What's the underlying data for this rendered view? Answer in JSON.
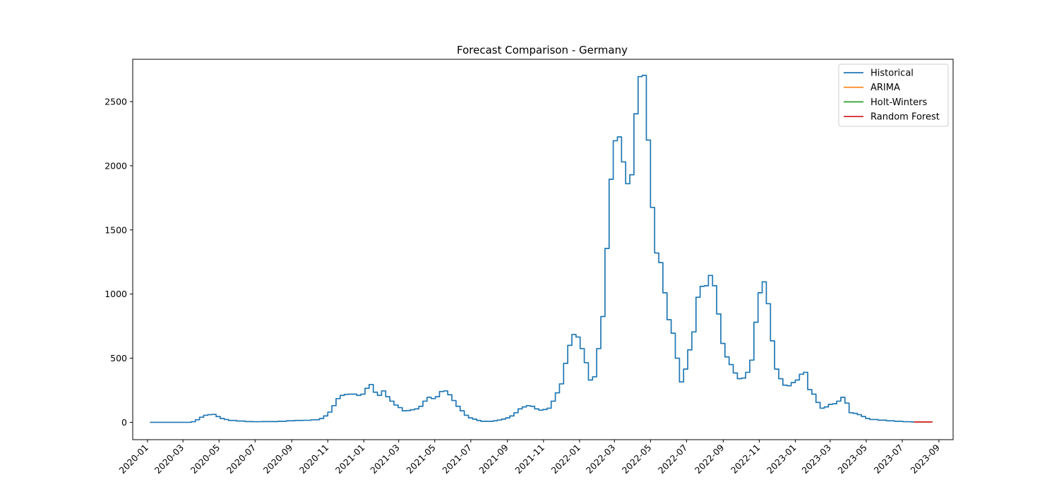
{
  "chart_data": {
    "type": "line",
    "title": "Forecast Comparison - Germany",
    "xlabel": "",
    "ylabel": "",
    "x_type": "date",
    "xlim": [
      "2019-12-07",
      "2023-09-25"
    ],
    "ylim": [
      -135,
      2830
    ],
    "grid": false,
    "legend_position": "top-right",
    "x_tick_labels": [
      "2020-01",
      "2020-03",
      "2020-05",
      "2020-07",
      "2020-09",
      "2020-11",
      "2021-01",
      "2021-03",
      "2021-05",
      "2021-07",
      "2021-09",
      "2021-11",
      "2022-01",
      "2022-03",
      "2022-05",
      "2022-07",
      "2022-09",
      "2022-11",
      "2023-01",
      "2023-03",
      "2023-05",
      "2023-07",
      "2023-09"
    ],
    "y_tick_labels": [
      "0",
      "500",
      "1000",
      "1500",
      "2000",
      "2500"
    ],
    "series": [
      {
        "name": "Historical",
        "color": "#1f77b4",
        "step": true,
        "points": [
          [
            "2020-01-05",
            0
          ],
          [
            "2020-03-15",
            5
          ],
          [
            "2020-03-22",
            20
          ],
          [
            "2020-03-29",
            40
          ],
          [
            "2020-04-05",
            55
          ],
          [
            "2020-04-12",
            60
          ],
          [
            "2020-04-19",
            62
          ],
          [
            "2020-04-26",
            45
          ],
          [
            "2020-05-03",
            30
          ],
          [
            "2020-05-10",
            22
          ],
          [
            "2020-05-17",
            15
          ],
          [
            "2020-05-31",
            10
          ],
          [
            "2020-06-14",
            6
          ],
          [
            "2020-06-28",
            5
          ],
          [
            "2020-07-12",
            6
          ],
          [
            "2020-07-26",
            6
          ],
          [
            "2020-08-09",
            8
          ],
          [
            "2020-08-23",
            12
          ],
          [
            "2020-09-06",
            15
          ],
          [
            "2020-09-20",
            16
          ],
          [
            "2020-10-04",
            20
          ],
          [
            "2020-10-18",
            30
          ],
          [
            "2020-10-25",
            50
          ],
          [
            "2020-11-01",
            80
          ],
          [
            "2020-11-08",
            130
          ],
          [
            "2020-11-15",
            185
          ],
          [
            "2020-11-22",
            210
          ],
          [
            "2020-11-29",
            218
          ],
          [
            "2020-12-06",
            220
          ],
          [
            "2020-12-20",
            210
          ],
          [
            "2020-12-27",
            220
          ],
          [
            "2021-01-03",
            265
          ],
          [
            "2021-01-10",
            295
          ],
          [
            "2021-01-17",
            235
          ],
          [
            "2021-01-24",
            210
          ],
          [
            "2021-01-31",
            245
          ],
          [
            "2021-02-07",
            200
          ],
          [
            "2021-02-14",
            165
          ],
          [
            "2021-02-21",
            135
          ],
          [
            "2021-02-28",
            115
          ],
          [
            "2021-03-07",
            90
          ],
          [
            "2021-03-14",
            92
          ],
          [
            "2021-03-21",
            98
          ],
          [
            "2021-03-28",
            105
          ],
          [
            "2021-04-04",
            125
          ],
          [
            "2021-04-11",
            165
          ],
          [
            "2021-04-18",
            195
          ],
          [
            "2021-04-25",
            185
          ],
          [
            "2021-05-02",
            200
          ],
          [
            "2021-05-09",
            240
          ],
          [
            "2021-05-16",
            245
          ],
          [
            "2021-05-23",
            215
          ],
          [
            "2021-05-30",
            170
          ],
          [
            "2021-06-06",
            125
          ],
          [
            "2021-06-13",
            90
          ],
          [
            "2021-06-20",
            55
          ],
          [
            "2021-06-27",
            35
          ],
          [
            "2021-07-04",
            25
          ],
          [
            "2021-07-11",
            15
          ],
          [
            "2021-07-18",
            8
          ],
          [
            "2021-08-01",
            8
          ],
          [
            "2021-08-08",
            12
          ],
          [
            "2021-08-15",
            18
          ],
          [
            "2021-08-22",
            25
          ],
          [
            "2021-08-29",
            35
          ],
          [
            "2021-09-05",
            50
          ],
          [
            "2021-09-12",
            75
          ],
          [
            "2021-09-19",
            105
          ],
          [
            "2021-09-26",
            120
          ],
          [
            "2021-10-03",
            130
          ],
          [
            "2021-10-10",
            125
          ],
          [
            "2021-10-17",
            105
          ],
          [
            "2021-10-24",
            95
          ],
          [
            "2021-10-31",
            100
          ],
          [
            "2021-11-07",
            110
          ],
          [
            "2021-11-14",
            165
          ],
          [
            "2021-11-21",
            230
          ],
          [
            "2021-11-28",
            300
          ],
          [
            "2021-12-05",
            460
          ],
          [
            "2021-12-12",
            600
          ],
          [
            "2021-12-19",
            685
          ],
          [
            "2021-12-26",
            665
          ],
          [
            "2022-01-02",
            575
          ],
          [
            "2022-01-09",
            465
          ],
          [
            "2022-01-16",
            330
          ],
          [
            "2022-01-23",
            355
          ],
          [
            "2022-01-30",
            575
          ],
          [
            "2022-02-06",
            825
          ],
          [
            "2022-02-13",
            1355
          ],
          [
            "2022-02-20",
            1895
          ],
          [
            "2022-02-27",
            2195
          ],
          [
            "2022-03-06",
            2225
          ],
          [
            "2022-03-13",
            2030
          ],
          [
            "2022-03-20",
            1860
          ],
          [
            "2022-03-27",
            1930
          ],
          [
            "2022-04-03",
            2405
          ],
          [
            "2022-04-10",
            2695
          ],
          [
            "2022-04-17",
            2705
          ],
          [
            "2022-04-24",
            2200
          ],
          [
            "2022-05-01",
            1675
          ],
          [
            "2022-05-08",
            1320
          ],
          [
            "2022-05-15",
            1245
          ],
          [
            "2022-05-22",
            1010
          ],
          [
            "2022-05-29",
            800
          ],
          [
            "2022-06-05",
            695
          ],
          [
            "2022-06-12",
            500
          ],
          [
            "2022-06-19",
            315
          ],
          [
            "2022-06-26",
            415
          ],
          [
            "2022-07-03",
            565
          ],
          [
            "2022-07-10",
            705
          ],
          [
            "2022-07-17",
            975
          ],
          [
            "2022-07-24",
            1060
          ],
          [
            "2022-07-31",
            1065
          ],
          [
            "2022-08-07",
            1145
          ],
          [
            "2022-08-14",
            1065
          ],
          [
            "2022-08-21",
            845
          ],
          [
            "2022-08-28",
            615
          ],
          [
            "2022-09-04",
            510
          ],
          [
            "2022-09-11",
            450
          ],
          [
            "2022-09-18",
            385
          ],
          [
            "2022-09-25",
            340
          ],
          [
            "2022-10-02",
            345
          ],
          [
            "2022-10-09",
            390
          ],
          [
            "2022-10-16",
            485
          ],
          [
            "2022-10-23",
            780
          ],
          [
            "2022-10-30",
            1010
          ],
          [
            "2022-11-06",
            1095
          ],
          [
            "2022-11-13",
            925
          ],
          [
            "2022-11-20",
            635
          ],
          [
            "2022-11-27",
            415
          ],
          [
            "2022-12-04",
            340
          ],
          [
            "2022-12-11",
            290
          ],
          [
            "2022-12-18",
            285
          ],
          [
            "2022-12-25",
            310
          ],
          [
            "2023-01-01",
            330
          ],
          [
            "2023-01-08",
            375
          ],
          [
            "2023-01-15",
            390
          ],
          [
            "2023-01-22",
            255
          ],
          [
            "2023-01-29",
            220
          ],
          [
            "2023-02-05",
            155
          ],
          [
            "2023-02-12",
            110
          ],
          [
            "2023-02-19",
            120
          ],
          [
            "2023-02-26",
            140
          ],
          [
            "2023-03-05",
            145
          ],
          [
            "2023-03-12",
            165
          ],
          [
            "2023-03-19",
            195
          ],
          [
            "2023-03-26",
            150
          ],
          [
            "2023-04-02",
            75
          ],
          [
            "2023-04-09",
            70
          ],
          [
            "2023-04-16",
            60
          ],
          [
            "2023-04-23",
            45
          ],
          [
            "2023-04-30",
            30
          ],
          [
            "2023-05-07",
            22
          ],
          [
            "2023-05-21",
            17
          ],
          [
            "2023-06-04",
            12
          ],
          [
            "2023-06-18",
            8
          ],
          [
            "2023-07-02",
            5
          ],
          [
            "2023-07-16",
            3
          ],
          [
            "2023-07-21",
            3
          ]
        ]
      },
      {
        "name": "ARIMA",
        "color": "#ff7f0e",
        "points": [
          [
            "2023-07-21",
            3
          ],
          [
            "2023-08-21",
            3
          ]
        ]
      },
      {
        "name": "Holt-Winters",
        "color": "#2ca02c",
        "points": [
          [
            "2023-07-21",
            3
          ],
          [
            "2023-08-21",
            3
          ]
        ]
      },
      {
        "name": "Random Forest",
        "color": "#d62728",
        "points": [
          [
            "2023-07-21",
            3
          ],
          [
            "2023-08-21",
            3
          ]
        ]
      }
    ]
  }
}
